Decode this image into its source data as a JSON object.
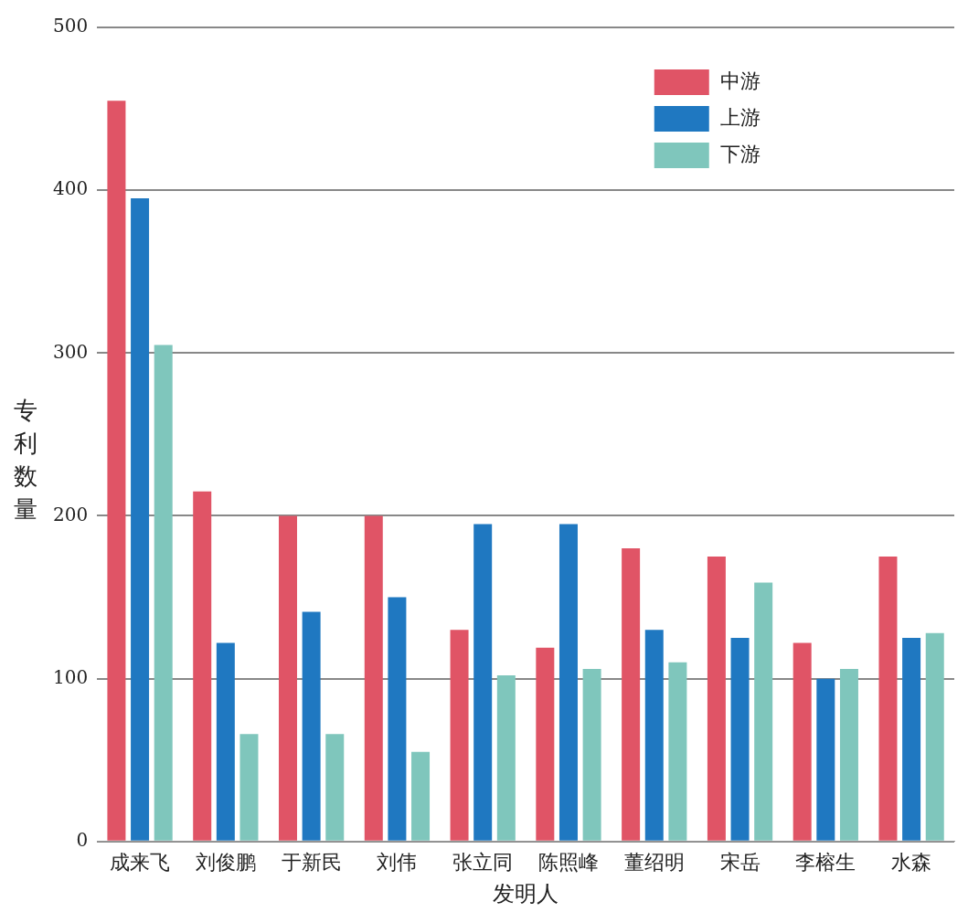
{
  "chart_data": {
    "type": "bar",
    "xlabel": "发明人",
    "ylabel": "专利数量",
    "categories": [
      "成来飞",
      "刘俊鹏",
      "于新民",
      "刘伟",
      "张立同",
      "陈照峰",
      "董绍明",
      "宋岳",
      "李榕生",
      "水森"
    ],
    "series": [
      {
        "name": "中游",
        "color": "#e05466",
        "values": [
          455,
          215,
          200,
          200,
          130,
          119,
          180,
          175,
          122,
          175
        ]
      },
      {
        "name": "上游",
        "color": "#1f78c1",
        "values": [
          395,
          122,
          141,
          150,
          195,
          195,
          130,
          125,
          100,
          125
        ]
      },
      {
        "name": "下游",
        "color": "#7fc6bc",
        "values": [
          305,
          66,
          66,
          55,
          102,
          106,
          110,
          159,
          106,
          128
        ]
      }
    ],
    "ylim": [
      0,
      500
    ],
    "yticks": [
      0,
      100,
      200,
      300,
      400,
      500
    ],
    "grid": "y",
    "legend": "top right"
  }
}
